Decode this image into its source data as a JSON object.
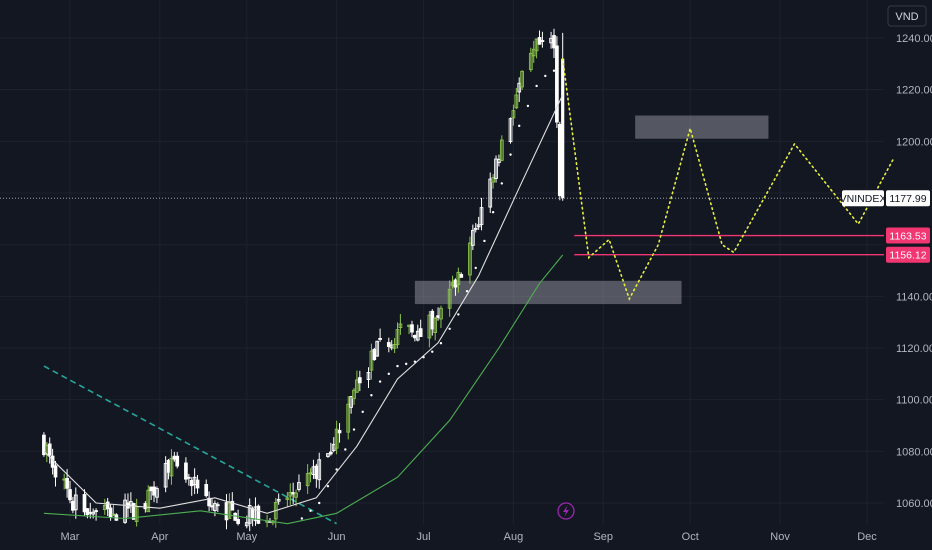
{
  "chart_data": {
    "type": "candlestick",
    "currency": "VND",
    "symbol": "VNINDEX",
    "last_price": "1177.99",
    "ylim": [
      1052,
      1250
    ],
    "x_ticks": [
      "Mar",
      "Apr",
      "May",
      "Jun",
      "Jul",
      "Aug",
      "Sep",
      "Oct",
      "Nov",
      "Dec"
    ],
    "y_ticks": [
      1060,
      1080,
      1100,
      1120,
      1140,
      1160,
      1180,
      1200,
      1220,
      1240
    ],
    "y_tick_labels": [
      "1060.00",
      "1080.00",
      "1100.00",
      "1120.00",
      "1140.00",
      "",
      "",
      "1200.00",
      "1220.00",
      "1240.00"
    ],
    "price_levels": [
      {
        "label": "1163.53",
        "value": 1163.53
      },
      {
        "label": "1156.12",
        "value": 1156.12
      }
    ],
    "close_trend": [
      {
        "date": "2023-02-20",
        "close": 1085
      },
      {
        "date": "2023-03-03",
        "close": 1060
      },
      {
        "date": "2023-03-13",
        "close": 1056
      },
      {
        "date": "2023-03-27",
        "close": 1058
      },
      {
        "date": "2023-04-05",
        "close": 1075
      },
      {
        "date": "2023-04-11",
        "close": 1070
      },
      {
        "date": "2023-04-20",
        "close": 1058
      },
      {
        "date": "2023-05-08",
        "close": 1054
      },
      {
        "date": "2023-05-18",
        "close": 1064
      },
      {
        "date": "2023-05-26",
        "close": 1072
      },
      {
        "date": "2023-06-01",
        "close": 1085
      },
      {
        "date": "2023-06-08",
        "close": 1103
      },
      {
        "date": "2023-06-15",
        "close": 1118
      },
      {
        "date": "2023-06-22",
        "close": 1125
      },
      {
        "date": "2023-06-29",
        "close": 1127
      },
      {
        "date": "2023-07-06",
        "close": 1132
      },
      {
        "date": "2023-07-13",
        "close": 1145
      },
      {
        "date": "2023-07-20",
        "close": 1166
      },
      {
        "date": "2023-07-27",
        "close": 1192
      },
      {
        "date": "2023-08-03",
        "close": 1218
      },
      {
        "date": "2023-08-10",
        "close": 1236
      },
      {
        "date": "2023-08-16",
        "close": 1240
      },
      {
        "date": "2023-08-18",
        "close": 1178
      }
    ],
    "ma_fast": [
      {
        "date": "2023-02-20",
        "value": 1080
      },
      {
        "date": "2023-03-10",
        "value": 1060
      },
      {
        "date": "2023-04-01",
        "value": 1058
      },
      {
        "date": "2023-04-20",
        "value": 1062
      },
      {
        "date": "2023-05-08",
        "value": 1056
      },
      {
        "date": "2023-05-25",
        "value": 1062
      },
      {
        "date": "2023-06-08",
        "value": 1082
      },
      {
        "date": "2023-06-22",
        "value": 1108
      },
      {
        "date": "2023-07-06",
        "value": 1122
      },
      {
        "date": "2023-07-20",
        "value": 1148
      },
      {
        "date": "2023-08-03",
        "value": 1182
      },
      {
        "date": "2023-08-18",
        "value": 1218
      }
    ],
    "ma_slow": [
      {
        "date": "2023-02-20",
        "value": 1056
      },
      {
        "date": "2023-03-20",
        "value": 1054
      },
      {
        "date": "2023-04-15",
        "value": 1057
      },
      {
        "date": "2023-05-15",
        "value": 1052
      },
      {
        "date": "2023-06-01",
        "value": 1056
      },
      {
        "date": "2023-06-22",
        "value": 1070
      },
      {
        "date": "2023-07-10",
        "value": 1092
      },
      {
        "date": "2023-07-27",
        "value": 1120
      },
      {
        "date": "2023-08-10",
        "value": 1145
      },
      {
        "date": "2023-08-18",
        "value": 1156
      }
    ],
    "downtrend_line": [
      {
        "date": "2023-02-20",
        "value": 1113
      },
      {
        "date": "2023-06-01",
        "value": 1052
      }
    ],
    "projection_path": [
      {
        "date": "2023-08-18",
        "value": 1232
      },
      {
        "date": "2023-08-27",
        "value": 1155
      },
      {
        "date": "2023-09-03",
        "value": 1162
      },
      {
        "date": "2023-09-10",
        "value": 1139
      },
      {
        "date": "2023-09-20",
        "value": 1160
      },
      {
        "date": "2023-10-01",
        "value": 1205
      },
      {
        "date": "2023-10-12",
        "value": 1160
      },
      {
        "date": "2023-10-16",
        "value": 1157
      },
      {
        "date": "2023-11-06",
        "value": 1199
      },
      {
        "date": "2023-11-28",
        "value": 1168
      },
      {
        "date": "2023-12-10",
        "value": 1193
      }
    ],
    "zones": [
      {
        "from": "2023-06-28",
        "to": "2023-09-28",
        "low": 1137,
        "high": 1146
      },
      {
        "from": "2023-09-12",
        "to": "2023-10-28",
        "low": 1201,
        "high": 1210
      }
    ]
  },
  "colors": {
    "background": "#131722",
    "candle_up": "#26a69a",
    "candle_green": "#8bc34a",
    "candle_white": "#ffffff",
    "ma_fast": "#e0e0e0",
    "ma_slow": "#4caf50",
    "trendline": "#26a69a",
    "projection": "#e6ee3c",
    "level_line": "#f23672",
    "zone": "#9598a1",
    "grid": "#1e222d",
    "text": "#b2b5be"
  },
  "icons": {
    "currency_badge": "currency-badge",
    "lightning": "lightning-icon"
  }
}
